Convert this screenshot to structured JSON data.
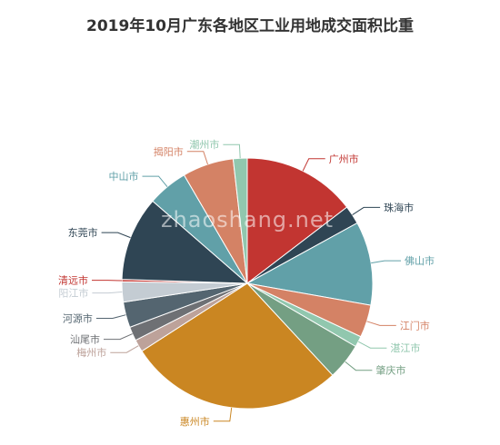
{
  "chart_data": {
    "type": "pie",
    "title": "2019年10月广东各地区工业用地成交面积比重",
    "watermark": "zhaoshang.net",
    "slices": [
      {
        "name": "广州市",
        "value": 14.6,
        "color": "#c23531"
      },
      {
        "name": "珠海市",
        "value": 2.4,
        "color": "#2f4554"
      },
      {
        "name": "佛山市",
        "value": 10.8,
        "color": "#61a0a8"
      },
      {
        "name": "江门市",
        "value": 4.2,
        "color": "#d48265"
      },
      {
        "name": "湛江市",
        "value": 1.4,
        "color": "#91c7ae"
      },
      {
        "name": "肇庆市",
        "value": 4.7,
        "color": "#749f83"
      },
      {
        "name": "惠州市",
        "value": 27.8,
        "color": "#ca8622"
      },
      {
        "name": "梅州市",
        "value": 1.6,
        "color": "#bda29a"
      },
      {
        "name": "汕尾市",
        "value": 1.8,
        "color": "#6e7074"
      },
      {
        "name": "河源市",
        "value": 3.3,
        "color": "#546570"
      },
      {
        "name": "阳江市",
        "value": 2.6,
        "color": "#c4ccd3"
      },
      {
        "name": "清远市",
        "value": 0.3,
        "color": "#c23531"
      },
      {
        "name": "东莞市",
        "value": 10.9,
        "color": "#2f4554"
      },
      {
        "name": "中山市",
        "value": 5.2,
        "color": "#61a0a8"
      },
      {
        "name": "揭阳市",
        "value": 6.6,
        "color": "#d48265"
      },
      {
        "name": "潮州市",
        "value": 1.8,
        "color": "#91c7ae"
      }
    ]
  }
}
